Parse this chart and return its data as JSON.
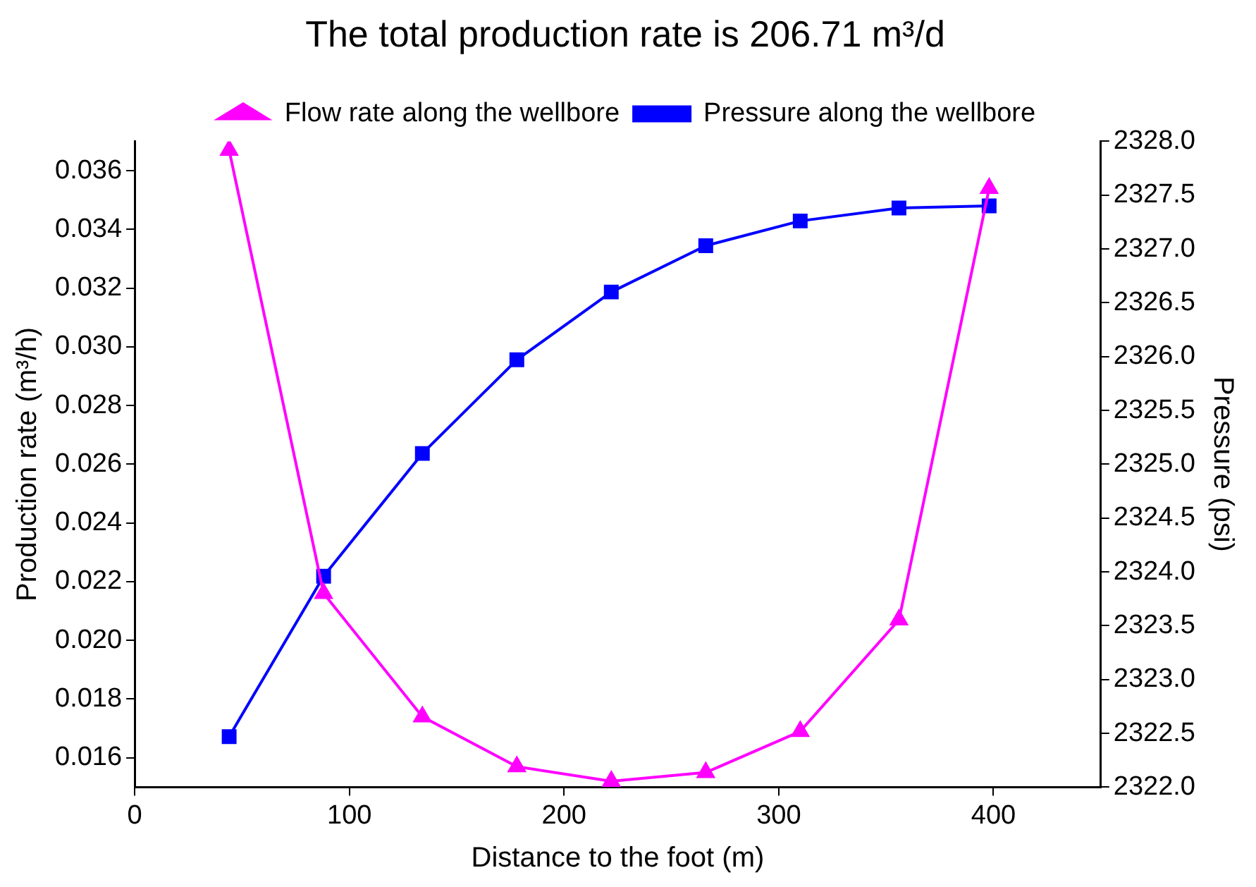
{
  "chart_data": {
    "type": "line",
    "title": "The total production rate is 206.71 m³/d",
    "xlabel": "Distance to the foot (m)",
    "ylabel": "Production rate (m³/h)",
    "y2label": "Pressure (psi)",
    "x": [
      44,
      88,
      134,
      178,
      222,
      266,
      310,
      356,
      398
    ],
    "series": [
      {
        "name": "Flow rate along the wellbore",
        "color": "#ff00ff",
        "marker": "triangle",
        "values": [
          0.0367,
          0.0216,
          0.0174,
          0.0157,
          0.0152,
          0.0155,
          0.0169,
          0.0207,
          0.0354
        ]
      },
      {
        "name": "Pressure along the wellbore",
        "color": "#0000ff",
        "marker": "square",
        "axis": "y2",
        "values": [
          2322.47,
          2323.96,
          2325.1,
          2325.97,
          2326.6,
          2327.03,
          2327.26,
          2327.38,
          2327.4
        ]
      }
    ],
    "xlim": [
      0,
      450
    ],
    "xticks": [
      0,
      100,
      200,
      300,
      400
    ],
    "ylim": [
      0.015,
      0.037
    ],
    "yticks": [
      {
        "value": 0.016,
        "label": "0.016"
      },
      {
        "value": 0.018,
        "label": "0.018"
      },
      {
        "value": 0.02,
        "label": "0.020"
      },
      {
        "value": 0.022,
        "label": "0.022"
      },
      {
        "value": 0.024,
        "label": "0.024"
      },
      {
        "value": 0.026,
        "label": "0.026"
      },
      {
        "value": 0.028,
        "label": "0.028"
      },
      {
        "value": 0.03,
        "label": "0.030"
      },
      {
        "value": 0.032,
        "label": "0.032"
      },
      {
        "value": 0.034,
        "label": "0.034"
      },
      {
        "value": 0.036,
        "label": "0.036"
      }
    ],
    "y2lim": [
      2322,
      2328
    ],
    "y2ticks": [
      {
        "value": 2322,
        "label": "2322.0"
      },
      {
        "value": 2322.5,
        "label": "2322.5"
      },
      {
        "value": 2323,
        "label": "2323.0"
      },
      {
        "value": 2323.5,
        "label": "2323.5"
      },
      {
        "value": 2324,
        "label": "2324.0"
      },
      {
        "value": 2324.5,
        "label": "2324.5"
      },
      {
        "value": 2325,
        "label": "2325.0"
      },
      {
        "value": 2325.5,
        "label": "2325.5"
      },
      {
        "value": 2326,
        "label": "2326.0"
      },
      {
        "value": 2326.5,
        "label": "2326.5"
      },
      {
        "value": 2327,
        "label": "2327.0"
      },
      {
        "value": 2327.5,
        "label": "2327.5"
      },
      {
        "value": 2328,
        "label": "2328.0"
      }
    ],
    "grid": false,
    "legend": "top",
    "line_style": "solid"
  }
}
